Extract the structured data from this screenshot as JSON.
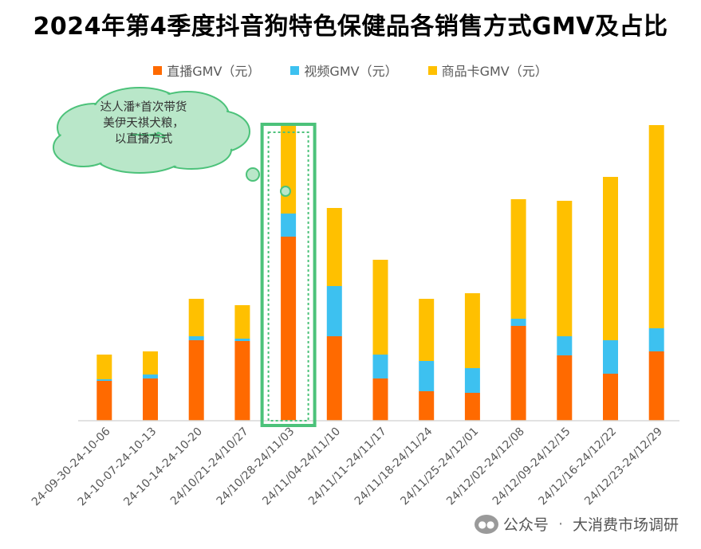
{
  "chart_data": {
    "type": "bar",
    "stacked": true,
    "title": "2024年第4季度抖音狗特色保健品各销售方式GMV及占比",
    "categories": [
      "24-09-30-24-10-06",
      "24-10-07-24-10-13",
      "24-10-14-24-10-20",
      "24/10/21-24/10/27",
      "24/10/28-24/11/03",
      "24/11/04-24/11/10",
      "24/11/11-24/11/17",
      "24/11/18-24/11/24",
      "24/11/25-24/12/01",
      "24/12/02-24/12/08",
      "24/12/09-24/12/15",
      "24/12/16-24/12/22",
      "24/12/23-24/12/29"
    ],
    "series": [
      {
        "name": "直播GMV（元）",
        "color": "#FF6A00",
        "values": [
          50,
          53,
          101,
          100,
          231,
          106,
          53,
          37,
          35,
          119,
          82,
          59,
          87
        ]
      },
      {
        "name": "视频GMV（元）",
        "color": "#3DC1F0",
        "values": [
          2,
          5,
          5,
          3,
          29,
          63,
          30,
          38,
          31,
          9,
          24,
          42,
          29
        ]
      },
      {
        "name": "商品卡GMV（元）",
        "color": "#FFC000",
        "values": [
          31,
          29,
          47,
          42,
          111,
          98,
          119,
          78,
          94,
          150,
          170,
          205,
          255
        ]
      }
    ],
    "ylim": [
      0,
      380
    ],
    "grid": false,
    "legend_position": "top",
    "annotation": {
      "lines": [
        "达人潘*首次带货",
        "美伊天祺犬粮，",
        "以直播方式"
      ],
      "target_category": "24/10/28-24/11/03",
      "cloud_color": "#B9E7C9",
      "border_color": "#4CC27A"
    }
  },
  "watermark": {
    "icon": "wechat-public-account-icon",
    "prefix": "公众号",
    "separator": "·",
    "name": "大消费市场调研"
  }
}
